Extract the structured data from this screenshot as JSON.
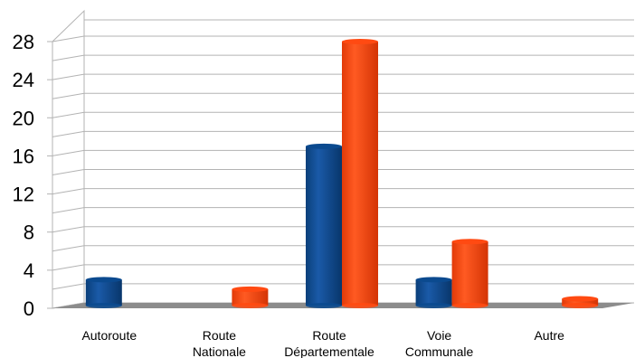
{
  "chart_data": {
    "type": "bar",
    "categories": [
      [
        "Autoroute"
      ],
      [
        "Route",
        "Nationale"
      ],
      [
        "Route",
        "Départementale"
      ],
      [
        "Voie",
        "Communale"
      ],
      [
        "Autre"
      ]
    ],
    "series": [
      {
        "values": [
          3,
          0,
          17,
          3,
          0
        ],
        "color": "#0b4a8f"
      },
      {
        "values": [
          0,
          2,
          28,
          7,
          1
        ],
        "color": "#ff4a12"
      }
    ],
    "yticks": [
      0,
      4,
      8,
      12,
      16,
      20,
      24,
      28
    ],
    "ylim": [
      0,
      28
    ],
    "grid": true,
    "legend": "none",
    "style": "3d"
  }
}
